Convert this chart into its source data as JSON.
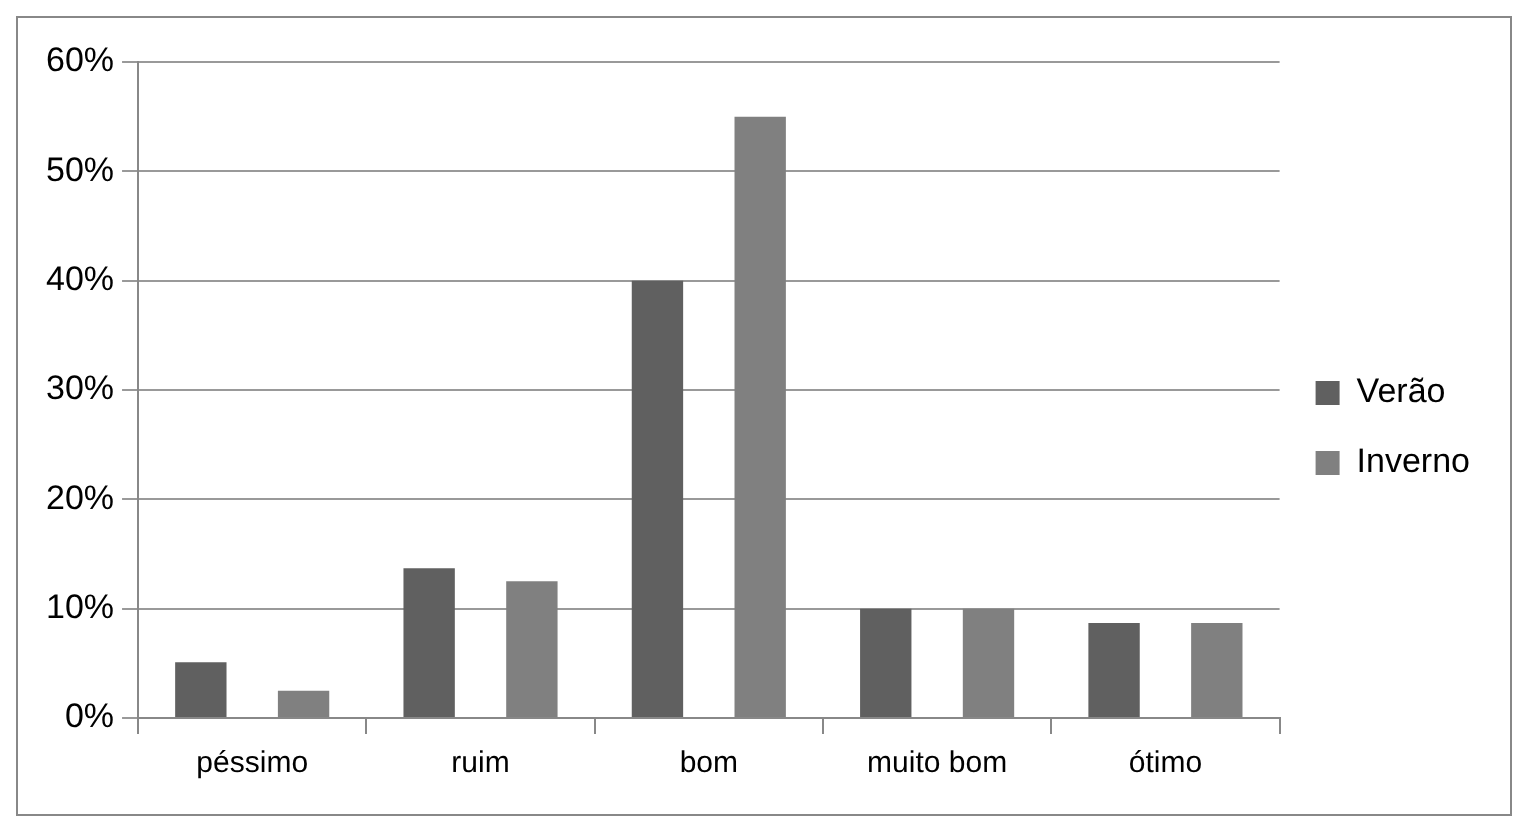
{
  "chart_data": {
    "type": "bar",
    "categories": [
      "péssimo",
      "ruim",
      "bom",
      "muito bom",
      "ótimo"
    ],
    "series": [
      {
        "name": "Verão",
        "color": "#606060",
        "values": [
          5.1,
          13.7,
          40,
          10,
          8.7
        ]
      },
      {
        "name": "Inverno",
        "color": "#808080",
        "values": [
          2.5,
          12.5,
          55,
          10,
          8.7
        ]
      }
    ],
    "ylim": [
      0,
      60
    ],
    "yticks": [
      {
        "value": 0,
        "label": "0%"
      },
      {
        "value": 10,
        "label": "10%"
      },
      {
        "value": 20,
        "label": "20%"
      },
      {
        "value": 30,
        "label": "30%"
      },
      {
        "value": 40,
        "label": "40%"
      },
      {
        "value": 50,
        "label": "50%"
      },
      {
        "value": 60,
        "label": "60%"
      }
    ],
    "grid": "y",
    "legend": "right"
  }
}
